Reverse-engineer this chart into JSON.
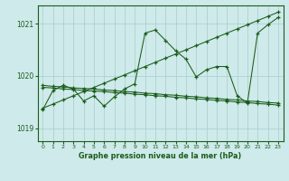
{
  "title": "Graphe pression niveau de la mer (hPa)",
  "bg_color": "#ceeaea",
  "line_color": "#1a5c1a",
  "grid_color": "#aacccc",
  "xlim": [
    -0.5,
    23.5
  ],
  "ylim": [
    1018.75,
    1021.35
  ],
  "yticks": [
    1019,
    1020,
    1021
  ],
  "xtick_labels": [
    "0",
    "1",
    "2",
    "3",
    "4",
    "5",
    "6",
    "7",
    "8",
    "9",
    "10",
    "11",
    "12",
    "13",
    "14",
    "15",
    "16",
    "17",
    "18",
    "19",
    "20",
    "21",
    "22",
    "23"
  ],
  "series_jagged": [
    1019.35,
    1019.72,
    1019.82,
    1019.75,
    1019.52,
    1019.62,
    1019.42,
    1019.6,
    1019.75,
    1019.85,
    1020.82,
    1020.88,
    1020.68,
    1020.48,
    1020.32,
    1019.98,
    1020.12,
    1020.18,
    1020.18,
    1019.62,
    1019.48,
    1020.82,
    1020.98,
    1021.12
  ],
  "series_diag_up": [
    1019.38,
    1019.46,
    1019.54,
    1019.62,
    1019.7,
    1019.78,
    1019.86,
    1019.94,
    1020.02,
    1020.1,
    1020.18,
    1020.26,
    1020.34,
    1020.42,
    1020.5,
    1020.58,
    1020.66,
    1020.74,
    1020.82,
    1020.9,
    1020.98,
    1021.06,
    1021.14,
    1021.22
  ],
  "series_flat1": [
    1019.82,
    1019.8,
    1019.79,
    1019.77,
    1019.76,
    1019.75,
    1019.73,
    1019.72,
    1019.7,
    1019.69,
    1019.67,
    1019.66,
    1019.64,
    1019.63,
    1019.61,
    1019.6,
    1019.58,
    1019.57,
    1019.55,
    1019.54,
    1019.52,
    1019.51,
    1019.49,
    1019.48
  ],
  "series_flat2": [
    1019.78,
    1019.77,
    1019.75,
    1019.74,
    1019.72,
    1019.71,
    1019.7,
    1019.68,
    1019.67,
    1019.65,
    1019.64,
    1019.62,
    1019.61,
    1019.59,
    1019.58,
    1019.56,
    1019.55,
    1019.53,
    1019.52,
    1019.5,
    1019.49,
    1019.47,
    1019.46,
    1019.44
  ]
}
